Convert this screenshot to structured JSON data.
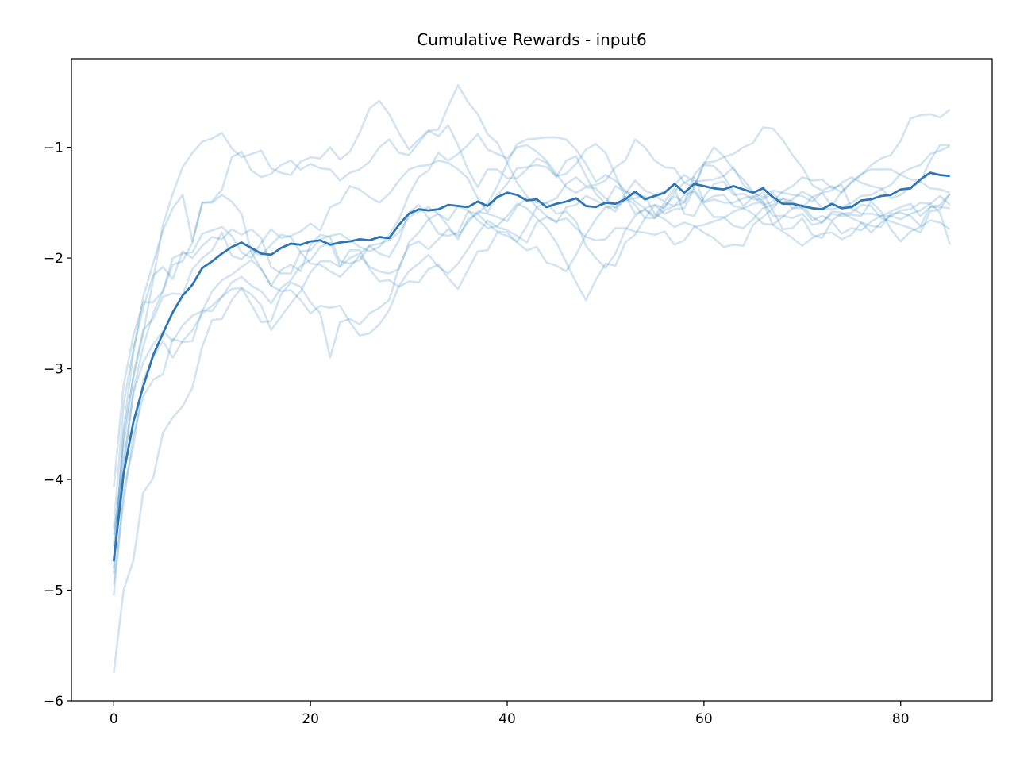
{
  "chart_data": {
    "type": "line",
    "title": "Cumulative Rewards - input6",
    "xlabel": "",
    "ylabel": "",
    "xlim": [
      -4.3,
      89.3
    ],
    "ylim": [
      -6,
      -0.2
    ],
    "x_ticks": [
      0,
      20,
      40,
      60,
      80
    ],
    "y_ticks": [
      -6,
      -5,
      -4,
      -3,
      -2,
      -1
    ],
    "x_tick_labels": [
      "0",
      "20",
      "40",
      "60",
      "80"
    ],
    "y_tick_labels": [
      "−6",
      "−5",
      "−4",
      "−3",
      "−2",
      "−1"
    ],
    "grid": false,
    "legend": "none",
    "colors": {
      "series": "#1f77b4",
      "mean": "#2e75b6"
    },
    "series": [
      {
        "values": [
          -4.07,
          -3.15,
          -2.7,
          -2.4,
          -2.4,
          -2.3,
          -2.0,
          -1.96,
          -1.95,
          -1.78,
          -1.75,
          -1.72,
          -1.8,
          -1.95,
          -2.0,
          -1.86,
          -1.74,
          -1.82,
          -1.8,
          -1.76,
          -1.69,
          -1.75,
          -1.54,
          -1.5,
          -1.35,
          -1.38,
          -1.45,
          -1.5,
          -1.42,
          -1.3,
          -1.2,
          -1.17,
          -1.16,
          -1.12,
          -1.14,
          -1.2,
          -1.28,
          -1.46,
          -1.59,
          -1.43,
          -1.33,
          -1.19,
          -1.18,
          -1.16,
          -1.18,
          -1.26,
          -1.24,
          -1.15,
          -1.02,
          -0.97,
          -1.05,
          -1.25,
          -1.45,
          -1.52,
          -1.64,
          -1.52,
          -1.6,
          -1.56,
          -1.55,
          -1.38,
          -1.5,
          -1.47,
          -1.5,
          -1.5,
          -1.46,
          -1.44,
          -1.52,
          -1.49,
          -1.4,
          -1.35,
          -1.27,
          -1.3,
          -1.29,
          -1.37,
          -1.34,
          -1.55,
          -1.6,
          -1.6,
          -1.62,
          -1.62,
          -1.57,
          -1.56,
          -1.5,
          -1.51,
          -1.44,
          -1.52
        ]
      },
      {
        "values": [
          -4.5,
          -3.9,
          -3.2,
          -2.8,
          -2.5,
          -2.3,
          -2.06,
          -2.03,
          -1.86,
          -1.5,
          -1.5,
          -1.43,
          -1.49,
          -1.6,
          -1.95,
          -2.1,
          -2.25,
          -2.11,
          -2.06,
          -2.12,
          -1.88,
          -1.79,
          -1.81,
          -2.03,
          -2.05,
          -2.02,
          -1.89,
          -1.96,
          -1.99,
          -1.84,
          -1.59,
          -1.52,
          -1.64,
          -1.78,
          -1.8,
          -1.77,
          -1.58,
          -1.6,
          -1.51,
          -1.35,
          -1.14,
          -0.97,
          -0.93,
          -0.92,
          -0.91,
          -0.91,
          -0.93,
          -1.02,
          -1.15,
          -1.31,
          -1.25,
          -1.3,
          -1.39,
          -1.49,
          -1.55,
          -1.52,
          -1.55,
          -1.4,
          -1.32,
          -1.27,
          -1.49,
          -1.44,
          -1.43,
          -1.53,
          -1.55,
          -1.6,
          -1.69,
          -1.7,
          -1.63,
          -1.55,
          -1.55,
          -1.45,
          -1.41,
          -1.53,
          -1.4,
          -1.31,
          -1.24,
          -1.2,
          -1.2,
          -1.2,
          -1.25,
          -1.29,
          -1.31,
          -1.12,
          -0.98,
          -0.98
        ]
      },
      {
        "values": [
          -4.6,
          -3.7,
          -3.05,
          -2.65,
          -2.55,
          -2.35,
          -2.32,
          -2.33,
          -2.1,
          -2.0,
          -1.93,
          -1.77,
          -1.98,
          -2.01,
          -1.93,
          -1.98,
          -1.88,
          -1.79,
          -1.81,
          -1.95,
          -2.05,
          -2.06,
          -2.12,
          -2.17,
          -2.08,
          -1.98,
          -2.08,
          -2.12,
          -2.14,
          -2.1,
          -1.86,
          -1.77,
          -1.65,
          -1.6,
          -1.71,
          -1.83,
          -1.65,
          -1.6,
          -1.69,
          -1.76,
          -1.77,
          -1.86,
          -1.93,
          -1.9,
          -2.04,
          -2.07,
          -2.12,
          -1.97,
          -1.79,
          -1.65,
          -1.54,
          -1.54,
          -1.48,
          -1.46,
          -1.44,
          -1.6,
          -1.65,
          -1.72,
          -1.68,
          -1.71,
          -1.77,
          -1.82,
          -1.9,
          -1.88,
          -1.89,
          -1.7,
          -1.63,
          -1.55,
          -1.46,
          -1.49,
          -1.55,
          -1.66,
          -1.62,
          -1.66,
          -1.6,
          -1.59,
          -1.52,
          -1.53,
          -1.64,
          -1.67,
          -1.7,
          -1.73,
          -1.77,
          -1.58,
          -1.56,
          -1.42
        ]
      },
      {
        "values": [
          -4.95,
          -4.2,
          -3.6,
          -3.25,
          -3.1,
          -3.05,
          -2.73,
          -2.76,
          -2.75,
          -2.47,
          -2.48,
          -2.35,
          -2.22,
          -2.17,
          -2.25,
          -2.3,
          -2.41,
          -2.27,
          -2.2,
          -2.07,
          -2.02,
          -1.9,
          -1.86,
          -2.07,
          -1.93,
          -1.93,
          -2.1,
          -2.21,
          -2.2,
          -2.26,
          -2.21,
          -2.22,
          -2.1,
          -2.06,
          -2.18,
          -2.28,
          -2.11,
          -1.94,
          -1.93,
          -1.77,
          -1.8,
          -1.85,
          -1.71,
          -1.54,
          -1.62,
          -1.68,
          -1.54,
          -1.52,
          -1.44,
          -1.48,
          -1.53,
          -1.58,
          -1.44,
          -1.6,
          -1.56,
          -1.62,
          -1.5,
          -1.53,
          -1.5,
          -1.36,
          -1.16,
          -1.17,
          -1.26,
          -1.4,
          -1.53,
          -1.45,
          -1.41,
          -1.57,
          -1.74,
          -1.73,
          -1.64,
          -1.79,
          -1.82,
          -1.67,
          -1.78,
          -1.73,
          -1.75,
          -1.67,
          -1.62,
          -1.58,
          -1.54,
          -1.51,
          -1.62,
          -1.54,
          -1.54,
          -1.55
        ]
      },
      {
        "values": [
          -5.05,
          -4.1,
          -3.7,
          -3.1,
          -2.9,
          -2.75,
          -2.9,
          -2.75,
          -2.65,
          -2.5,
          -2.43,
          -2.35,
          -2.28,
          -2.27,
          -2.42,
          -2.58,
          -2.57,
          -2.33,
          -2.22,
          -2.26,
          -2.4,
          -2.5,
          -2.9,
          -2.58,
          -2.55,
          -2.6,
          -2.5,
          -2.45,
          -2.38,
          -2.08,
          -1.89,
          -1.85,
          -1.92,
          -1.83,
          -1.74,
          -1.8,
          -1.68,
          -1.58,
          -1.6,
          -1.63,
          -1.67,
          -1.53,
          -1.46,
          -1.5,
          -1.5,
          -1.6,
          -1.58,
          -1.67,
          -1.89,
          -2.0,
          -2.09,
          -1.96,
          -1.75,
          -1.62,
          -1.56,
          -1.64,
          -1.53,
          -1.44,
          -1.5,
          -1.25,
          -1.15,
          -1.0,
          -1.08,
          -1.2,
          -1.29,
          -1.4,
          -1.5,
          -1.7,
          -1.76,
          -1.82,
          -1.89,
          -1.82,
          -1.78,
          -1.77,
          -1.83,
          -1.79,
          -1.68,
          -1.71,
          -1.72,
          -1.6,
          -1.59,
          -1.62,
          -1.71,
          -1.54,
          -1.52,
          -1.42
        ]
      },
      {
        "values": [
          -5.75,
          -5.0,
          -4.73,
          -4.12,
          -3.99,
          -3.58,
          -3.44,
          -3.34,
          -3.17,
          -2.8,
          -2.56,
          -2.55,
          -2.38,
          -2.27,
          -2.33,
          -2.43,
          -2.65,
          -2.53,
          -2.41,
          -2.3,
          -2.13,
          -2.03,
          -2.03,
          -2.08,
          -2.0,
          -1.96,
          -1.89,
          -1.87,
          -1.84,
          -1.77,
          -1.63,
          -1.58,
          -1.54,
          -1.6,
          -1.66,
          -1.53,
          -1.57,
          -1.66,
          -1.73,
          -1.71,
          -1.62,
          -1.51,
          -1.55,
          -1.64,
          -1.73,
          -1.86,
          -2.04,
          -2.22,
          -2.38,
          -2.2,
          -2.05,
          -2.07,
          -1.86,
          -1.79,
          -1.64,
          -1.64,
          -1.57,
          -1.53,
          -1.43,
          -1.4,
          -1.52,
          -1.63,
          -1.63,
          -1.71,
          -1.73,
          -1.65,
          -1.55,
          -1.52,
          -1.46,
          -1.55,
          -1.52,
          -1.63,
          -1.68,
          -1.6,
          -1.62,
          -1.61,
          -1.62,
          -1.49,
          -1.58,
          -1.74,
          -1.85,
          -1.76,
          -1.72,
          -1.66,
          -1.68,
          -1.74
        ]
      },
      {
        "values": [
          -4.85,
          -3.55,
          -2.85,
          -2.35,
          -2.05,
          -1.75,
          -1.55,
          -1.43,
          -1.85,
          -1.5,
          -1.49,
          -1.38,
          -1.09,
          -1.04,
          -1.21,
          -1.27,
          -1.24,
          -1.16,
          -1.12,
          -1.2,
          -1.15,
          -1.19,
          -1.2,
          -1.3,
          -1.23,
          -1.2,
          -1.13,
          -1.0,
          -0.93,
          -1.05,
          -1.07,
          -0.96,
          -0.85,
          -0.9,
          -0.8,
          -0.98,
          -1.2,
          -1.36,
          -1.2,
          -1.2,
          -1.28,
          -1.28,
          -1.2,
          -1.1,
          -1.14,
          -1.27,
          -1.12,
          -1.08,
          -1.26,
          -1.42,
          -1.51,
          -1.35,
          -1.4,
          -1.43,
          -1.46,
          -1.44,
          -1.49,
          -1.37,
          -1.6,
          -1.62,
          -1.45,
          -1.33,
          -1.31,
          -1.43,
          -1.42,
          -1.47,
          -1.47,
          -1.41,
          -1.51,
          -1.47,
          -1.4,
          -1.45,
          -1.55,
          -1.56,
          -1.54,
          -1.5,
          -1.44,
          -1.43,
          -1.38,
          -1.34,
          -1.24,
          -1.19,
          -1.16,
          -1.06,
          -1.03,
          -0.99
        ]
      },
      {
        "values": [
          -4.72,
          -3.58,
          -3.08,
          -2.68,
          -2.2,
          -1.7,
          -1.42,
          -1.18,
          -1.05,
          -0.95,
          -0.92,
          -0.87,
          -1.01,
          -1.09,
          -1.06,
          -1.03,
          -1.19,
          -1.23,
          -1.25,
          -1.13,
          -1.09,
          -1.1,
          -1.0,
          -1.11,
          -1.04,
          -0.87,
          -0.65,
          -0.58,
          -0.7,
          -0.87,
          -1.02,
          -0.93,
          -0.85,
          -0.84,
          -0.63,
          -0.44,
          -0.59,
          -0.7,
          -0.88,
          -0.96,
          -1.14,
          -1.32,
          -1.44,
          -1.54,
          -1.5,
          -1.46,
          -1.33,
          -1.27,
          -1.35,
          -1.34,
          -1.3,
          -1.18,
          -1.12,
          -0.93,
          -1.0,
          -1.12,
          -1.18,
          -1.19,
          -1.32,
          -1.36,
          -1.14,
          -1.13,
          -1.09,
          -1.06,
          -1.0,
          -0.96,
          -0.82,
          -0.83,
          -0.93,
          -1.07,
          -1.18,
          -1.34,
          -1.39,
          -1.35,
          -1.41,
          -1.32,
          -1.25,
          -1.16,
          -1.1,
          -1.07,
          -0.94,
          -0.74,
          -0.71,
          -0.7,
          -0.73,
          -0.66
        ]
      },
      {
        "values": [
          -4.45,
          -3.32,
          -2.82,
          -2.45,
          -2.16,
          -2.08,
          -2.19,
          -1.94,
          -2.0,
          -1.89,
          -1.81,
          -1.83,
          -1.74,
          -1.79,
          -1.74,
          -1.82,
          -2.08,
          -2.14,
          -2.14,
          -1.94,
          -1.93,
          -1.83,
          -1.8,
          -1.78,
          -1.84,
          -1.9,
          -1.94,
          -1.9,
          -1.79,
          -1.65,
          -1.43,
          -1.27,
          -1.21,
          -1.05,
          -1.12,
          -1.06,
          -0.98,
          -0.88,
          -1.02,
          -1.06,
          -1.1,
          -1.0,
          -0.98,
          -1.04,
          -1.12,
          -1.24,
          -1.36,
          -1.41,
          -1.36,
          -1.37,
          -1.46,
          -1.55,
          -1.42,
          -1.3,
          -1.39,
          -1.43,
          -1.4,
          -1.34,
          -1.25,
          -1.31,
          -1.3,
          -1.29,
          -1.26,
          -1.18,
          -1.34,
          -1.41,
          -1.45,
          -1.39,
          -1.41,
          -1.43,
          -1.44,
          -1.49,
          -1.41,
          -1.39,
          -1.32,
          -1.27,
          -1.32,
          -1.35,
          -1.37,
          -1.46,
          -1.43,
          -1.36,
          -1.31,
          -1.37,
          -1.38,
          -1.41
        ]
      },
      {
        "values": [
          -4.8,
          -3.85,
          -3.22,
          -2.94,
          -2.78,
          -2.66,
          -2.75,
          -2.61,
          -2.52,
          -2.48,
          -2.3,
          -2.2,
          -2.15,
          -2.08,
          -2.02,
          -2.1,
          -2.25,
          -2.3,
          -2.29,
          -2.38,
          -2.5,
          -2.43,
          -2.45,
          -2.43,
          -2.58,
          -2.7,
          -2.68,
          -2.6,
          -2.47,
          -2.25,
          -2.12,
          -2.05,
          -1.97,
          -2.08,
          -2.14,
          -2.05,
          -1.92,
          -1.78,
          -1.66,
          -1.72,
          -1.75,
          -1.8,
          -1.86,
          -1.68,
          -1.63,
          -1.67,
          -1.64,
          -1.73,
          -1.81,
          -1.84,
          -1.83,
          -1.73,
          -1.73,
          -1.76,
          -1.77,
          -1.79,
          -1.76,
          -1.88,
          -1.84,
          -1.72,
          -1.7,
          -1.67,
          -1.64,
          -1.58,
          -1.55,
          -1.51,
          -1.49,
          -1.62,
          -1.62,
          -1.64,
          -1.6,
          -1.7,
          -1.68,
          -1.58,
          -1.59,
          -1.64,
          -1.68,
          -1.77,
          -1.68,
          -1.62,
          -1.65,
          -1.6,
          -1.57,
          -1.51,
          -1.59,
          -1.88
        ]
      }
    ],
    "mean": [
      -4.74,
      -3.95,
      -3.48,
      -3.16,
      -2.88,
      -2.68,
      -2.49,
      -2.34,
      -2.24,
      -2.09,
      -2.03,
      -1.96,
      -1.9,
      -1.86,
      -1.91,
      -1.96,
      -1.97,
      -1.91,
      -1.87,
      -1.88,
      -1.85,
      -1.84,
      -1.88,
      -1.86,
      -1.85,
      -1.83,
      -1.84,
      -1.81,
      -1.82,
      -1.7,
      -1.6,
      -1.56,
      -1.57,
      -1.56,
      -1.52,
      -1.53,
      -1.54,
      -1.49,
      -1.53,
      -1.45,
      -1.41,
      -1.43,
      -1.48,
      -1.47,
      -1.54,
      -1.51,
      -1.49,
      -1.46,
      -1.53,
      -1.54,
      -1.5,
      -1.51,
      -1.47,
      -1.4,
      -1.47,
      -1.44,
      -1.41,
      -1.33,
      -1.41,
      -1.33,
      -1.35,
      -1.37,
      -1.38,
      -1.35,
      -1.38,
      -1.41,
      -1.37,
      -1.45,
      -1.51,
      -1.51,
      -1.53,
      -1.55,
      -1.56,
      -1.51,
      -1.55,
      -1.54,
      -1.48,
      -1.47,
      -1.44,
      -1.43,
      -1.38,
      -1.37,
      -1.29,
      -1.23,
      -1.25,
      -1.26
    ]
  }
}
